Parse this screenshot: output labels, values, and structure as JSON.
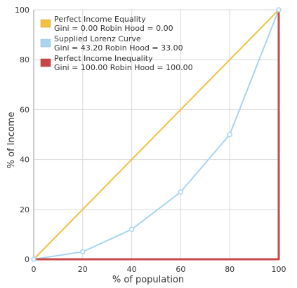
{
  "chart_data": {
    "type": "line",
    "xlabel": "% of population",
    "ylabel": "% of Income",
    "xlim": [
      0,
      100
    ],
    "ylim": [
      0,
      100
    ],
    "x_ticks": [
      0,
      20,
      40,
      60,
      80,
      100
    ],
    "y_ticks": [
      0,
      20,
      40,
      60,
      80,
      100
    ],
    "grid": true,
    "legend_position": "top-left",
    "series": [
      {
        "name": "Perfect Income Equality",
        "stats": "Gini = 0.00 Robin Hood = 0.00",
        "color": "#F0C040",
        "markers": false,
        "points": [
          [
            0,
            0
          ],
          [
            100,
            100
          ]
        ]
      },
      {
        "name": "Supplied Lorenz Curve",
        "stats": "Gini = 43.20 Robin Hood = 33.00",
        "color": "#A8D4F0",
        "markers": true,
        "points": [
          [
            0,
            0
          ],
          [
            20,
            3
          ],
          [
            40,
            12
          ],
          [
            60,
            27
          ],
          [
            80,
            50
          ],
          [
            100,
            100
          ]
        ]
      },
      {
        "name": "Perfect Income Inequality",
        "stats": "Gini = 100.00 Robin Hood = 100.00",
        "color": "#C84848",
        "markers": false,
        "points": [
          [
            0,
            0
          ],
          [
            100,
            0
          ],
          [
            100,
            100
          ]
        ]
      }
    ]
  }
}
